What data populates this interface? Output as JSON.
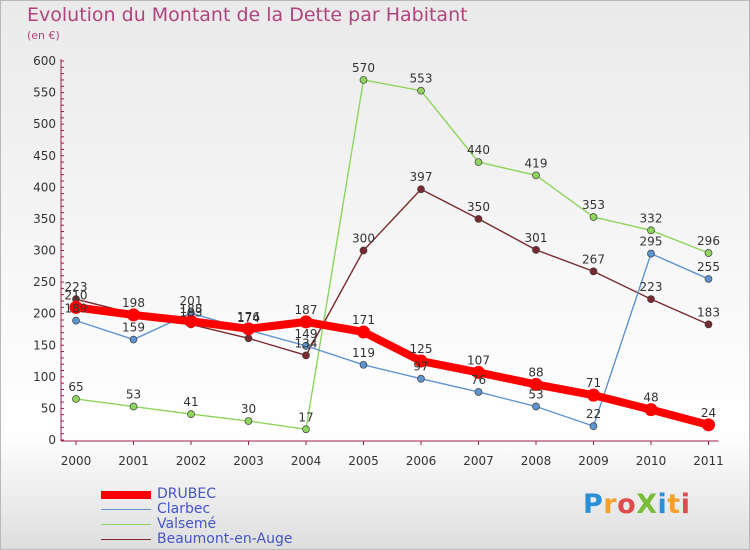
{
  "header": {
    "title": "Evolution du Montant de la Dette par Habitant",
    "unit": "(en €)"
  },
  "logo": {
    "text": "ProXiti",
    "colors": [
      "#2b8fd6",
      "#f2a12f",
      "#e04b4b",
      "#79bd3a"
    ]
  },
  "chart_data": {
    "type": "line",
    "title": "Evolution du Montant de la Dette par Habitant",
    "ylabel": "(en €)",
    "x": [
      "2000",
      "2001",
      "2002",
      "2003",
      "2004",
      "2005",
      "2006",
      "2007",
      "2008",
      "2009",
      "2010",
      "2011"
    ],
    "ylim": [
      0,
      600
    ],
    "yticks": [
      0,
      50,
      100,
      150,
      200,
      250,
      300,
      350,
      400,
      450,
      500,
      550,
      600
    ],
    "grid": false,
    "legend_position": "bottom-left",
    "series": [
      {
        "name": "Beaumont-en-Auge",
        "color": "#7a2a2e",
        "values": [
          223,
          200,
          183,
          161,
          134,
          300,
          397,
          350,
          301,
          267,
          223,
          183
        ],
        "labels": [
          "223",
          null,
          "183",
          null,
          "134",
          "300",
          "397",
          "350",
          "301",
          "267",
          "223",
          "183"
        ]
      },
      {
        "name": "Valsemé",
        "color": "#8fd45c",
        "values": [
          65,
          53,
          41,
          30,
          17,
          570,
          553,
          440,
          419,
          353,
          332,
          296
        ],
        "labels": [
          "65",
          "53",
          "41",
          "30",
          "17",
          "570",
          "553",
          "440",
          "419",
          "353",
          "332",
          "296"
        ]
      },
      {
        "name": "Clarbec",
        "color": "#5e94cf",
        "values": [
          189,
          159,
          201,
          174,
          149,
          119,
          97,
          76,
          53,
          22,
          295,
          255
        ],
        "labels": [
          "189",
          "159",
          "201",
          "174",
          "149",
          "119",
          "97",
          "76",
          "53",
          "22",
          "295",
          "255"
        ]
      },
      {
        "name": "DRUBEC",
        "color": "#ff0000",
        "values": [
          210,
          198,
          188,
          176,
          187,
          171,
          125,
          107,
          88,
          71,
          48,
          24
        ],
        "labels": [
          "210",
          "198",
          "188",
          "176",
          "187",
          "171",
          "125",
          "107",
          "88",
          "71",
          "48",
          "24"
        ]
      }
    ],
    "legend_order": [
      "DRUBEC",
      "Clarbec",
      "Valsemé",
      "Beaumont-en-Auge"
    ]
  }
}
